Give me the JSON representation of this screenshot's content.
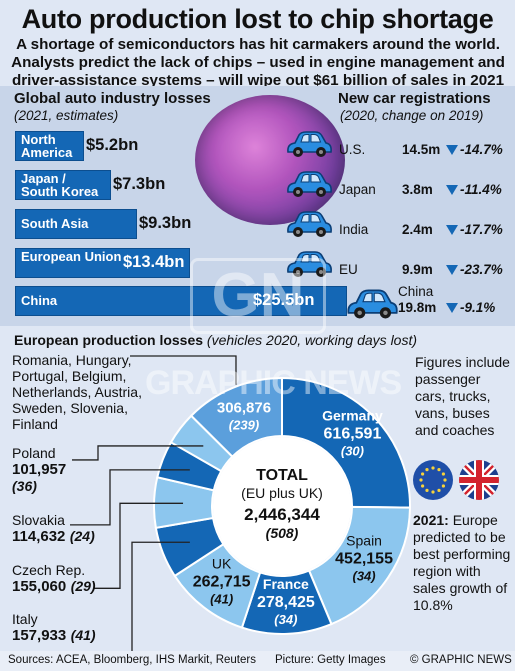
{
  "title": "Auto production lost to chip shortage",
  "intro": "A shortage of semiconductors has hit carmakers around the world. Analysts predict the lack of chips – used in engine management and driver-assistance systems – will wipe out $61 billion of sales in 2021",
  "losses": {
    "heading": "Global auto industry losses",
    "sub": "(2021, estimates)",
    "bars": [
      {
        "label": "North America",
        "value": "$5.2bn",
        "amount": 5.2
      },
      {
        "label": "Japan / South Korea",
        "value": "$7.3bn",
        "amount": 7.3
      },
      {
        "label": "South Asia",
        "value": "$9.3bn",
        "amount": 9.3
      },
      {
        "label": "European Union",
        "value": "$13.4bn",
        "amount": 13.4
      },
      {
        "label": "China",
        "value": "$25.5bn",
        "amount": 25.5
      }
    ]
  },
  "registrations": {
    "heading": "New car registrations",
    "sub": "(2020, change on 2019)",
    "rows": [
      {
        "country": "U.S.",
        "value": "14.5m",
        "change": "-14.7%"
      },
      {
        "country": "Japan",
        "value": "3.8m",
        "change": "-11.4%"
      },
      {
        "country": "India",
        "value": "2.4m",
        "change": "-17.7%"
      },
      {
        "country": "EU",
        "value": "9.9m",
        "change": "-23.7%"
      },
      {
        "country": "China",
        "value": "19.8m",
        "change": "-9.1%"
      }
    ]
  },
  "europe": {
    "heading": "European production losses",
    "sub": "(vehicles 2020, working days lost)",
    "total_label": "TOTAL",
    "total_sub": "(EU plus UK)",
    "total_value": "2,446,344",
    "total_days": "(508)",
    "segments": [
      {
        "name": "Germany",
        "value": "616,591",
        "days": "(30)",
        "amount": 616591,
        "color": "#1467b5"
      },
      {
        "name": "Spain",
        "value": "452,155",
        "days": "(34)",
        "amount": 452155,
        "color": "#8cc6ee"
      },
      {
        "name": "France",
        "value": "278,425",
        "days": "(34)",
        "amount": 278425,
        "color": "#1467b5"
      },
      {
        "name": "UK",
        "value": "262,715",
        "days": "(41)",
        "amount": 262715,
        "color": "#8cc6ee"
      },
      {
        "name": "Italy",
        "value": "157,933",
        "days": "(41)",
        "amount": 157933,
        "color": "#1467b5"
      },
      {
        "name": "Czech Rep.",
        "value": "155,060",
        "days": "(29)",
        "amount": 155060,
        "color": "#8cc6ee"
      },
      {
        "name": "Slovakia",
        "value": "114,632",
        "days": "(24)",
        "amount": 114632,
        "color": "#1467b5"
      },
      {
        "name": "Poland",
        "value": "101,957",
        "days": "(36)",
        "amount": 101957,
        "color": "#8cc6ee"
      },
      {
        "name": "Others",
        "value": "306,876",
        "days": "(239)",
        "amount": 306876,
        "color": "#5b9fdc"
      }
    ],
    "others_countries": "Romania, Hungary, Portugal, Belgium, Netherlands, Austria, Sweden, Slovenia, Finland"
  },
  "note_figures": "Figures include passenger cars, trucks, vans, buses and coaches",
  "note_2021_bold": "2021:",
  "note_2021_text": "Europe predicted to be best performing region with sales growth of 10.8%",
  "footer": {
    "sources": "Sources: ACEA, Bloomberg, IHS Markit, Reuters",
    "picture": "Picture: Getty Images",
    "credit": "© GRAPHIC NEWS"
  },
  "watermark": {
    "logo": "GN",
    "text": "GRAPHIC NEWS"
  },
  "chart_data": [
    {
      "type": "bar",
      "title": "Global auto industry losses",
      "subtitle": "(2021, estimates)",
      "categories": [
        "North America",
        "Japan / South Korea",
        "South Asia",
        "European Union",
        "China"
      ],
      "values": [
        5.2,
        7.3,
        9.3,
        13.4,
        25.5
      ],
      "units": "$bn"
    },
    {
      "type": "table",
      "title": "New car registrations",
      "subtitle": "(2020, change on 2019)",
      "categories": [
        "U.S.",
        "Japan",
        "India",
        "EU",
        "China"
      ],
      "registrations_m": [
        14.5,
        3.8,
        2.4,
        9.9,
        19.8
      ],
      "change_pct": [
        -14.7,
        -11.4,
        -17.7,
        -23.7,
        -9.1
      ]
    },
    {
      "type": "pie",
      "title": "European production losses",
      "subtitle": "(vehicles 2020, working days lost)",
      "categories": [
        "Germany",
        "Spain",
        "France",
        "UK",
        "Italy",
        "Czech Rep.",
        "Slovakia",
        "Poland",
        "Romania, Hungary, Portugal, Belgium, Netherlands, Austria, Sweden, Slovenia, Finland"
      ],
      "values": [
        616591,
        452155,
        278425,
        262715,
        157933,
        155060,
        114632,
        101957,
        306876
      ],
      "working_days_lost": [
        30,
        34,
        34,
        41,
        41,
        29,
        24,
        36,
        239
      ],
      "total": 2446344,
      "total_days": 508
    }
  ]
}
